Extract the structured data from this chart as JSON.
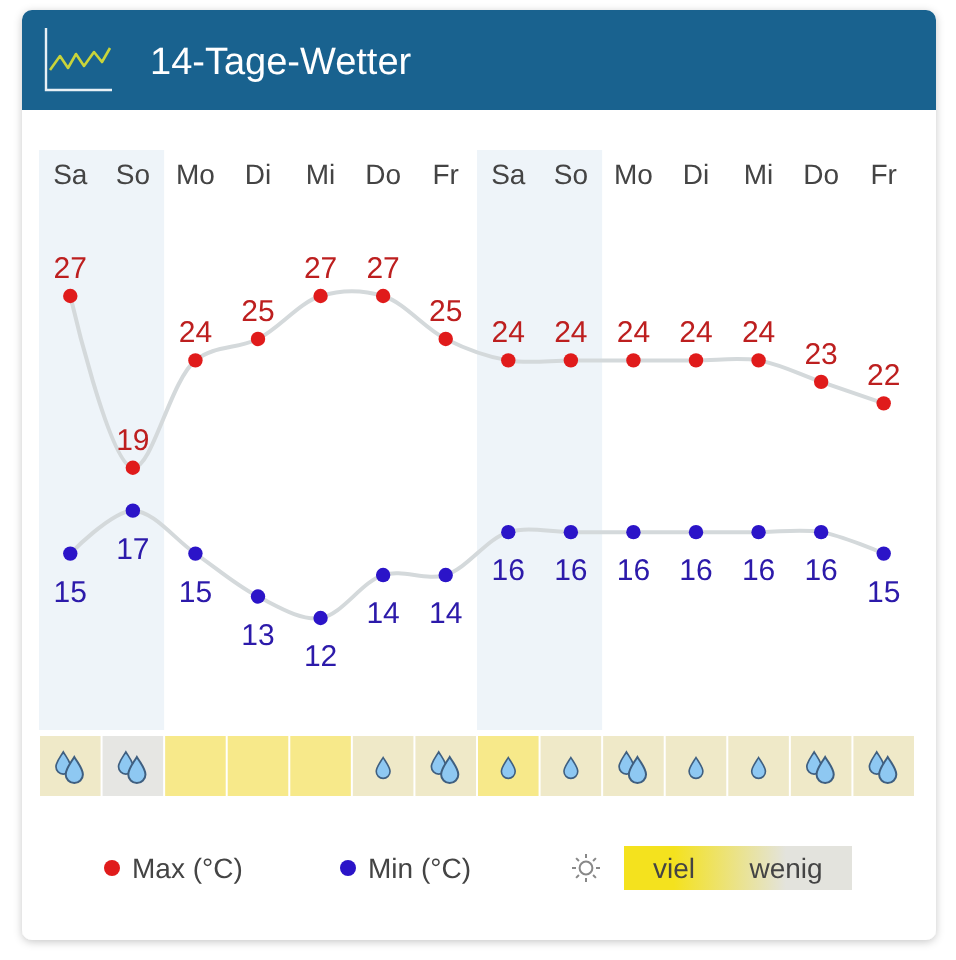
{
  "chart_data": {
    "type": "line",
    "title": "14-Tage-Wetter",
    "categories": [
      "Sa",
      "So",
      "Mo",
      "Di",
      "Mi",
      "Do",
      "Fr",
      "Sa",
      "So",
      "Mo",
      "Di",
      "Mi",
      "Do",
      "Fr"
    ],
    "series": [
      {
        "name": "Max (°C)",
        "color": "#e01b1b",
        "values": [
          27,
          19,
          24,
          25,
          27,
          27,
          25,
          24,
          24,
          24,
          24,
          24,
          23,
          22
        ]
      },
      {
        "name": "Min (°C)",
        "color": "#2b14c8",
        "values": [
          15,
          17,
          15,
          13,
          12,
          14,
          14,
          16,
          16,
          16,
          16,
          16,
          16,
          15
        ]
      }
    ],
    "tick_labels": "x",
    "data_labels": true,
    "marker": "circle",
    "legend": "bottom",
    "annotations": [
      "viel",
      "wenig"
    ]
  }
}
